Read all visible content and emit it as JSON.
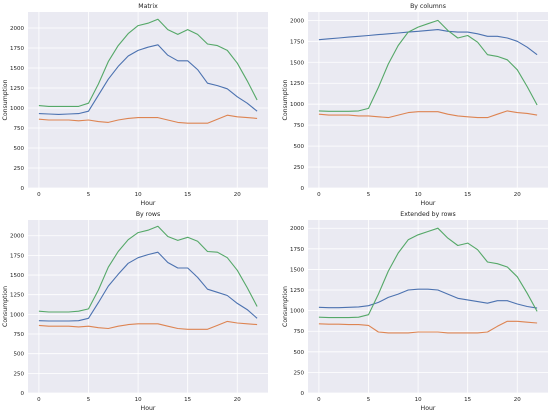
{
  "chart_data": [
    {
      "type": "line",
      "title": "Matrix",
      "xlabel": "Hour",
      "ylabel": "Consumption",
      "xlim": [
        -1.1,
        23.1
      ],
      "ylim": [
        0,
        2200
      ],
      "xticks": [
        0,
        5,
        10,
        15,
        20
      ],
      "yticks": [
        0,
        250,
        500,
        750,
        1000,
        1250,
        1500,
        1750,
        2000
      ],
      "grid": true,
      "x": [
        0,
        1,
        2,
        3,
        4,
        5,
        6,
        7,
        8,
        9,
        10,
        11,
        12,
        13,
        14,
        15,
        16,
        17,
        18,
        19,
        20,
        21,
        22
      ],
      "series": [
        {
          "color": "#4c72b0",
          "values": [
            930,
            925,
            920,
            925,
            930,
            960,
            1160,
            1360,
            1520,
            1650,
            1720,
            1760,
            1790,
            1660,
            1590,
            1590,
            1480,
            1310,
            1280,
            1240,
            1140,
            1060,
            960
          ]
        },
        {
          "color": "#dd8452",
          "values": [
            860,
            850,
            850,
            850,
            840,
            850,
            830,
            820,
            850,
            870,
            880,
            880,
            880,
            850,
            820,
            810,
            810,
            810,
            860,
            910,
            890,
            880,
            870
          ]
        },
        {
          "color": "#55a868",
          "values": [
            1030,
            1020,
            1020,
            1020,
            1020,
            1060,
            1300,
            1580,
            1780,
            1930,
            2030,
            2060,
            2110,
            1980,
            1920,
            1980,
            1920,
            1800,
            1780,
            1720,
            1560,
            1340,
            1100
          ]
        }
      ]
    },
    {
      "type": "line",
      "title": "By columns",
      "xlabel": "Hour",
      "ylabel": "Consumption",
      "xlim": [
        -1.1,
        23.1
      ],
      "ylim": [
        0,
        2100
      ],
      "xticks": [
        0,
        5,
        10,
        15,
        20
      ],
      "yticks": [
        0,
        250,
        500,
        750,
        1000,
        1250,
        1500,
        1750,
        2000
      ],
      "grid": true,
      "x": [
        0,
        1,
        2,
        3,
        4,
        5,
        6,
        7,
        8,
        9,
        10,
        11,
        12,
        13,
        14,
        15,
        16,
        17,
        18,
        19,
        20,
        21,
        22
      ],
      "series": [
        {
          "color": "#4c72b0",
          "values": [
            1770,
            1780,
            1790,
            1800,
            1810,
            1820,
            1830,
            1840,
            1850,
            1860,
            1870,
            1880,
            1890,
            1870,
            1860,
            1860,
            1840,
            1810,
            1810,
            1790,
            1750,
            1680,
            1590
          ]
        },
        {
          "color": "#dd8452",
          "values": [
            880,
            870,
            870,
            870,
            860,
            860,
            850,
            840,
            870,
            900,
            910,
            910,
            910,
            880,
            860,
            850,
            840,
            840,
            880,
            920,
            900,
            890,
            870
          ]
        },
        {
          "color": "#55a868",
          "values": [
            920,
            915,
            915,
            915,
            920,
            950,
            1200,
            1480,
            1700,
            1860,
            1920,
            1960,
            2000,
            1880,
            1790,
            1820,
            1740,
            1590,
            1570,
            1530,
            1410,
            1210,
            990
          ]
        }
      ]
    },
    {
      "type": "line",
      "title": "By rows",
      "xlabel": "Hour",
      "ylabel": "Consumption",
      "xlim": [
        -1.1,
        23.1
      ],
      "ylim": [
        0,
        2200
      ],
      "xticks": [
        0,
        5,
        10,
        15,
        20
      ],
      "yticks": [
        0,
        250,
        500,
        750,
        1000,
        1250,
        1500,
        1750,
        2000
      ],
      "grid": true,
      "x": [
        0,
        1,
        2,
        3,
        4,
        5,
        6,
        7,
        8,
        9,
        10,
        11,
        12,
        13,
        14,
        15,
        16,
        17,
        18,
        19,
        20,
        21,
        22
      ],
      "series": [
        {
          "color": "#4c72b0",
          "values": [
            920,
            915,
            915,
            915,
            920,
            950,
            1150,
            1360,
            1510,
            1650,
            1720,
            1760,
            1790,
            1660,
            1590,
            1590,
            1470,
            1320,
            1280,
            1240,
            1140,
            1060,
            950
          ]
        },
        {
          "color": "#dd8452",
          "values": [
            860,
            850,
            850,
            850,
            840,
            850,
            830,
            820,
            850,
            870,
            880,
            880,
            880,
            850,
            820,
            810,
            810,
            810,
            860,
            910,
            890,
            880,
            870
          ]
        },
        {
          "color": "#55a868",
          "values": [
            1040,
            1030,
            1030,
            1030,
            1040,
            1070,
            1310,
            1600,
            1800,
            1950,
            2040,
            2070,
            2120,
            1990,
            1940,
            1980,
            1930,
            1800,
            1790,
            1720,
            1560,
            1340,
            1100
          ]
        }
      ]
    },
    {
      "type": "line",
      "title": "Extended by rows",
      "xlabel": "Hour",
      "ylabel": "Consumption",
      "xlim": [
        -1.1,
        23.1
      ],
      "ylim": [
        0,
        2100
      ],
      "xticks": [
        0,
        5,
        10,
        15,
        20
      ],
      "yticks": [
        0,
        250,
        500,
        750,
        1000,
        1250,
        1500,
        1750,
        2000
      ],
      "grid": true,
      "x": [
        0,
        1,
        2,
        3,
        4,
        5,
        6,
        7,
        8,
        9,
        10,
        11,
        12,
        13,
        14,
        15,
        16,
        17,
        18,
        19,
        20,
        21,
        22
      ],
      "series": [
        {
          "color": "#4c72b0",
          "values": [
            1040,
            1035,
            1035,
            1040,
            1045,
            1060,
            1100,
            1160,
            1200,
            1250,
            1260,
            1260,
            1250,
            1200,
            1150,
            1130,
            1110,
            1090,
            1120,
            1120,
            1080,
            1050,
            1030
          ]
        },
        {
          "color": "#dd8452",
          "values": [
            840,
            835,
            835,
            830,
            830,
            820,
            740,
            730,
            730,
            730,
            740,
            740,
            740,
            730,
            730,
            730,
            730,
            740,
            810,
            870,
            870,
            860,
            850
          ]
        },
        {
          "color": "#55a868",
          "values": [
            920,
            915,
            915,
            915,
            920,
            950,
            1200,
            1480,
            1700,
            1860,
            1920,
            1960,
            2000,
            1880,
            1790,
            1820,
            1740,
            1590,
            1570,
            1530,
            1410,
            1210,
            990
          ]
        }
      ]
    }
  ]
}
